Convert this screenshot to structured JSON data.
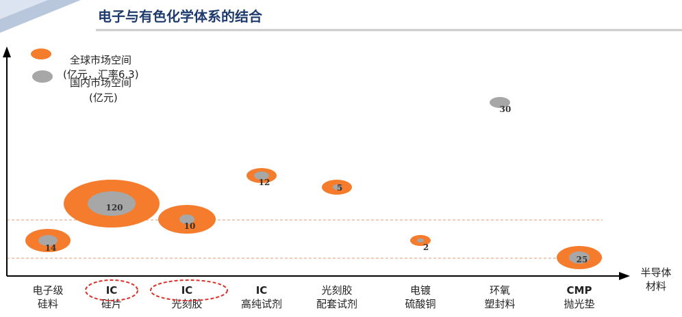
{
  "title": "电子与有色化学体系的结合",
  "colors": {
    "title": "#1f3b6e",
    "global": "#f47c2c",
    "domestic": "#a7a7a7",
    "axis": "#000000",
    "guide": "#e69a6a",
    "circle": "#d9302a",
    "header_bar": "#b9c7dd"
  },
  "chart_data": {
    "type": "bubble",
    "legend": [
      {
        "key": "global",
        "lines": [
          "全球市场空间",
          "(亿元，汇率6.3)"
        ]
      },
      {
        "key": "domestic",
        "lines": [
          "国内市场空间",
          "(亿元)"
        ]
      }
    ],
    "x_axis_label": [
      "半导体",
      "材料"
    ],
    "categories": [
      {
        "lines": [
          "电子级",
          "硅料"
        ],
        "highlight": false,
        "value_label": "14"
      },
      {
        "lines": [
          "IC",
          "硅片"
        ],
        "highlight": true,
        "value_label": "120"
      },
      {
        "lines": [
          "IC",
          "光刻胶"
        ],
        "highlight": true,
        "value_label": "10"
      },
      {
        "lines": [
          "IC",
          "高纯试剂"
        ],
        "highlight": false,
        "value_label": "12"
      },
      {
        "lines": [
          "光刻胶",
          "配套试剂"
        ],
        "highlight": false,
        "value_label": "5"
      },
      {
        "lines": [
          "电镀",
          "硫酸铜"
        ],
        "highlight": false,
        "value_label": "2"
      },
      {
        "lines": [
          "环氧",
          "塑封料"
        ],
        "highlight": false,
        "value_label": "30"
      },
      {
        "lines": [
          "CMP",
          "抛光垫"
        ],
        "highlight": false,
        "value_label": "25"
      }
    ]
  }
}
